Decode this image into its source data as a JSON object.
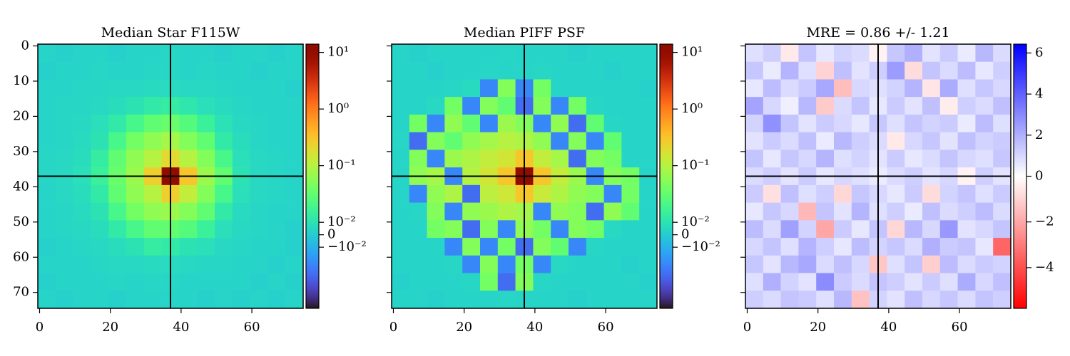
{
  "chart_data": [
    {
      "type": "heatmap",
      "title": "Median Star F115W",
      "xlim": [
        -0.5,
        74.5
      ],
      "ylim": [
        74.5,
        -0.5
      ],
      "xticks": [
        0,
        20,
        40,
        60
      ],
      "yticks": [
        0,
        10,
        20,
        30,
        40,
        50,
        60,
        70
      ],
      "show_ytick_labels": true,
      "crosshair": {
        "x": 37,
        "y": 37,
        "color": "#000000"
      },
      "colorbar": {
        "colormap": "turbo",
        "scale": "symlog",
        "linthresh": 0.01,
        "clim": [
          -0.12,
          14
        ],
        "ticks": [
          {
            "value": 10,
            "label": "10¹"
          },
          {
            "value": 1,
            "label": "10⁰"
          },
          {
            "value": 0.1,
            "label": "10⁻¹"
          },
          {
            "value": 0.01,
            "label": "10⁻²"
          },
          0,
          {
            "value": -0.01,
            "label": "−10⁻²"
          }
        ]
      },
      "values": [
        [
          0.003,
          0.002,
          0.003,
          0.003,
          0.002,
          0.003,
          0.003,
          0.004,
          0.003,
          0.003,
          0.002,
          0.003,
          0.003,
          0.002,
          0.003
        ],
        [
          0.002,
          0.003,
          0.003,
          0.004,
          0.003,
          0.003,
          0.004,
          0.004,
          0.003,
          0.004,
          0.003,
          0.003,
          0.002,
          0.003,
          0.003
        ],
        [
          0.003,
          0.003,
          0.004,
          0.004,
          0.005,
          0.005,
          0.006,
          0.006,
          0.005,
          0.005,
          0.004,
          0.003,
          0.003,
          0.003,
          0.002
        ],
        [
          0.003,
          0.004,
          0.004,
          0.005,
          0.007,
          0.01,
          0.012,
          0.013,
          0.011,
          0.008,
          0.006,
          0.004,
          0.003,
          0.003,
          0.003
        ],
        [
          0.003,
          0.004,
          0.005,
          0.008,
          0.012,
          0.02,
          0.03,
          0.035,
          0.025,
          0.015,
          0.009,
          0.005,
          0.004,
          0.003,
          0.003
        ],
        [
          0.003,
          0.004,
          0.006,
          0.01,
          0.02,
          0.04,
          0.06,
          0.08,
          0.05,
          0.03,
          0.012,
          0.007,
          0.004,
          0.003,
          0.003
        ],
        [
          0.004,
          0.005,
          0.007,
          0.013,
          0.03,
          0.06,
          0.1,
          0.2,
          0.1,
          0.05,
          0.02,
          0.008,
          0.005,
          0.004,
          0.003
        ],
        [
          0.004,
          0.005,
          0.008,
          0.015,
          0.035,
          0.07,
          0.25,
          12,
          0.3,
          0.07,
          0.03,
          0.01,
          0.005,
          0.004,
          0.003
        ],
        [
          0.003,
          0.005,
          0.007,
          0.012,
          0.03,
          0.06,
          0.1,
          0.25,
          0.12,
          0.05,
          0.02,
          0.008,
          0.005,
          0.004,
          0.003
        ],
        [
          0.003,
          0.004,
          0.006,
          0.01,
          0.02,
          0.04,
          0.06,
          0.07,
          0.05,
          0.03,
          0.012,
          0.006,
          0.004,
          0.003,
          0.003
        ],
        [
          0.003,
          0.004,
          0.005,
          0.007,
          0.012,
          0.02,
          0.03,
          0.03,
          0.025,
          0.015,
          0.008,
          0.005,
          0.004,
          0.003,
          0.002
        ],
        [
          0.002,
          0.003,
          0.004,
          0.005,
          0.007,
          0.01,
          0.013,
          0.012,
          0.01,
          0.008,
          0.005,
          0.004,
          0.003,
          0.003,
          0.002
        ],
        [
          0.003,
          0.003,
          0.003,
          0.004,
          0.005,
          0.005,
          0.006,
          0.006,
          0.005,
          0.004,
          0.004,
          0.003,
          0.003,
          0.002,
          0.003
        ],
        [
          0.002,
          0.003,
          0.003,
          0.003,
          0.004,
          0.003,
          0.004,
          0.004,
          0.003,
          0.003,
          0.003,
          0.003,
          0.002,
          0.003,
          0.002
        ],
        [
          0.003,
          0.002,
          0.003,
          0.003,
          0.002,
          0.003,
          0.003,
          0.003,
          0.003,
          0.002,
          0.003,
          0.002,
          0.003,
          0.002,
          0.003
        ]
      ]
    },
    {
      "type": "heatmap",
      "title": "Median PIFF PSF",
      "xlim": [
        -0.5,
        74.5
      ],
      "ylim": [
        74.5,
        -0.5
      ],
      "xticks": [
        0,
        20,
        40,
        60
      ],
      "yticks": [
        0,
        10,
        20,
        30,
        40,
        50,
        60,
        70
      ],
      "show_ytick_labels": false,
      "crosshair": {
        "x": 37,
        "y": 37,
        "color": "#000000"
      },
      "colorbar": {
        "colormap": "turbo",
        "scale": "symlog",
        "linthresh": 0.01,
        "clim": [
          -0.12,
          14
        ],
        "ticks": [
          {
            "value": 10,
            "label": "10¹"
          },
          {
            "value": 1,
            "label": "10⁰"
          },
          {
            "value": 0.1,
            "label": "10⁻¹"
          },
          {
            "value": 0.01,
            "label": "10⁻²"
          },
          0,
          {
            "value": -0.01,
            "label": "−10⁻²"
          }
        ]
      },
      "values": [
        [
          0.003,
          0.002,
          0.003,
          0.003,
          0.003,
          0.003,
          0.004,
          0.003,
          0.003,
          0.003,
          0.002,
          0.003,
          0.003,
          0.003,
          0.003
        ],
        [
          0.003,
          0.003,
          0.002,
          0.003,
          0.003,
          0.004,
          0.003,
          0.003,
          0.004,
          0.003,
          0.003,
          0.003,
          0.002,
          0.003,
          0.003
        ],
        [
          0.003,
          0.003,
          0.003,
          0.004,
          0.006,
          -0.02,
          0.05,
          -0.02,
          0.04,
          0.003,
          0.003,
          0.003,
          0.003,
          0.003,
          0.002
        ],
        [
          0.003,
          0.003,
          0.005,
          0.04,
          -0.02,
          0.05,
          0.03,
          -0.03,
          0.05,
          -0.02,
          0.04,
          0.004,
          0.003,
          0.003,
          0.003
        ],
        [
          0.003,
          0.04,
          -0.02,
          0.06,
          0.03,
          -0.02,
          0.07,
          0.05,
          -0.02,
          0.06,
          -0.03,
          0.03,
          0.004,
          0.003,
          0.003
        ],
        [
          0.004,
          -0.03,
          0.05,
          0.03,
          0.06,
          0.08,
          0.1,
          0.09,
          0.06,
          -0.02,
          0.05,
          -0.02,
          0.03,
          0.003,
          0.003
        ],
        [
          0.003,
          0.05,
          -0.02,
          0.07,
          0.09,
          0.12,
          0.15,
          0.3,
          0.12,
          0.08,
          -0.03,
          0.05,
          0.04,
          0.003,
          0.003
        ],
        [
          0.003,
          0.06,
          0.08,
          -0.02,
          0.1,
          0.15,
          0.3,
          12,
          0.3,
          0.12,
          0.07,
          -0.02,
          0.05,
          0.04,
          0.003
        ],
        [
          0.003,
          -0.02,
          0.06,
          0.09,
          -0.03,
          0.11,
          0.14,
          0.3,
          0.13,
          0.09,
          0.06,
          0.05,
          -0.02,
          0.04,
          0.003
        ],
        [
          0.003,
          0.004,
          0.05,
          -0.02,
          0.06,
          0.07,
          0.09,
          0.08,
          -0.02,
          0.06,
          0.05,
          -0.03,
          0.06,
          0.03,
          0.003
        ],
        [
          0.003,
          0.003,
          0.04,
          0.05,
          -0.03,
          0.05,
          -0.02,
          0.06,
          0.04,
          -0.02,
          0.05,
          0.04,
          0.005,
          0.003,
          0.003
        ],
        [
          0.003,
          0.003,
          0.003,
          -0.02,
          0.05,
          -0.02,
          0.04,
          -0.03,
          0.05,
          0.03,
          -0.02,
          0.004,
          0.003,
          0.003,
          0.003
        ],
        [
          0.003,
          0.003,
          0.003,
          0.004,
          -0.02,
          0.05,
          -0.02,
          0.04,
          -0.02,
          0.005,
          0.003,
          0.003,
          0.003,
          0.002,
          0.003
        ],
        [
          0.002,
          0.003,
          0.003,
          0.003,
          0.004,
          0.04,
          -0.03,
          0.05,
          0.004,
          0.003,
          0.003,
          0.003,
          0.003,
          0.003,
          0.002
        ],
        [
          0.003,
          0.003,
          0.002,
          0.003,
          0.003,
          0.003,
          0.004,
          0.003,
          0.003,
          0.003,
          0.002,
          0.003,
          0.003,
          0.003,
          0.003
        ]
      ]
    },
    {
      "type": "heatmap",
      "title": "MRE = 0.86 +/- 1.21",
      "xlim": [
        -0.5,
        74.5
      ],
      "ylim": [
        74.5,
        -0.5
      ],
      "xticks": [
        0,
        20,
        40,
        60
      ],
      "yticks": [
        0,
        10,
        20,
        30,
        40,
        50,
        60,
        70
      ],
      "show_ytick_labels": false,
      "crosshair": {
        "x": 37,
        "y": 37,
        "color": "#000000"
      },
      "colorbar": {
        "colormap": "bwr_r",
        "scale": "linear",
        "clim": [
          -5.78,
          6.43
        ],
        "ticks": [
          6,
          4,
          2,
          0,
          {
            "value": -2,
            "label": "−2"
          },
          {
            "value": -4,
            "label": "−4"
          }
        ]
      },
      "values": [
        [
          0.8,
          1.2,
          -0.5,
          1.5,
          0.6,
          1.1,
          0.9,
          -0.3,
          1.4,
          2.0,
          0.7,
          1.3,
          0.5,
          1.8,
          0.9
        ],
        [
          1.4,
          0.5,
          1.9,
          0.8,
          -1.0,
          1.6,
          0.7,
          1.2,
          2.5,
          -0.8,
          1.5,
          0.9,
          1.7,
          0.6,
          1.2
        ],
        [
          0.6,
          1.7,
          0.9,
          1.3,
          2.2,
          -1.5,
          1.0,
          0.8,
          1.1,
          1.9,
          -0.6,
          2.1,
          0.8,
          1.4,
          1.0
        ],
        [
          2.3,
          1.0,
          0.4,
          1.8,
          -1.2,
          0.9,
          1.5,
          0.6,
          1.3,
          0.7,
          1.6,
          -0.4,
          1.2,
          0.9,
          1.6
        ],
        [
          1.1,
          2.8,
          1.5,
          0.7,
          1.3,
          1.0,
          0.6,
          1.4,
          0.8,
          1.5,
          1.1,
          1.3,
          0.5,
          1.7,
          0.8
        ],
        [
          0.7,
          1.3,
          0.9,
          1.6,
          0.5,
          1.8,
          1.2,
          0.9,
          -0.5,
          1.0,
          1.4,
          0.7,
          1.6,
          1.1,
          1.3
        ],
        [
          1.5,
          0.6,
          1.4,
          1.0,
          1.9,
          0.8,
          1.1,
          0.7,
          1.3,
          0.6,
          0.9,
          1.5,
          1.0,
          0.8,
          1.4
        ],
        [
          0.9,
          1.2,
          0.7,
          1.3,
          0.6,
          1.0,
          0.8,
          0.5,
          0.9,
          1.2,
          0.7,
          1.0,
          -0.3,
          1.2,
          0.7
        ],
        [
          1.3,
          -0.7,
          1.6,
          0.8,
          1.2,
          -0.9,
          1.4,
          1.0,
          0.6,
          1.3,
          -0.8,
          1.1,
          1.5,
          0.8,
          1.3
        ],
        [
          0.6,
          1.4,
          1.0,
          -1.6,
          1.5,
          0.7,
          1.9,
          0.8,
          1.2,
          0.5,
          1.6,
          0.9,
          1.2,
          1.7,
          0.9
        ],
        [
          1.7,
          0.9,
          2.4,
          1.1,
          -2.0,
          1.3,
          0.6,
          1.5,
          -0.9,
          1.8,
          1.0,
          2.6,
          0.7,
          1.0,
          1.5
        ],
        [
          1.0,
          1.5,
          0.8,
          1.9,
          1.2,
          0.6,
          1.7,
          1.1,
          1.4,
          0.9,
          2.0,
          1.3,
          1.5,
          0.6,
          -3.5
        ],
        [
          1.4,
          0.7,
          1.8,
          2.2,
          0.9,
          1.6,
          1.0,
          -1.3,
          0.8,
          1.5,
          -1.1,
          1.7,
          0.9,
          1.3,
          1.1
        ],
        [
          0.8,
          2.0,
          1.1,
          0.7,
          2.9,
          1.3,
          0.9,
          1.5,
          1.2,
          0.7,
          1.3,
          0.8,
          2.1,
          1.0,
          1.6
        ],
        [
          1.2,
          0.9,
          1.5,
          1.3,
          0.8,
          1.8,
          -1.4,
          1.1,
          0.7,
          1.6,
          1.0,
          1.4,
          0.9,
          1.5,
          1.2
        ]
      ]
    }
  ]
}
